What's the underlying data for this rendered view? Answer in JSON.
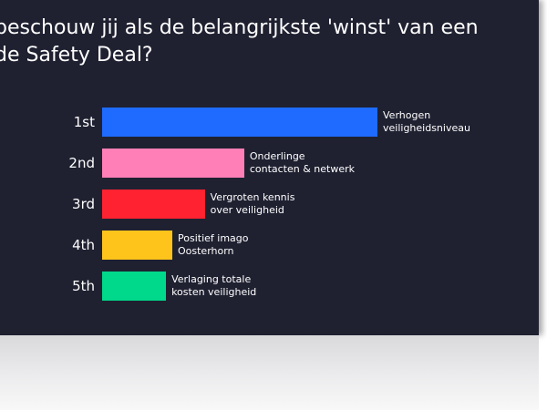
{
  "slide": {
    "title_lines": [
      "beschouw jij als de belangrijkste 'winst' van een",
      "de Safety Deal?"
    ]
  },
  "chart_data": {
    "type": "bar",
    "orientation": "horizontal",
    "title": "beschouw jij als de belangrijkste 'winst' van een de Safety Deal?",
    "categories": [
      "1st",
      "2nd",
      "3rd",
      "4th",
      "5th"
    ],
    "labels": [
      [
        "Verhogen",
        "veiligheidsniveau"
      ],
      [
        "Onderlinge",
        "contacten & netwerk"
      ],
      [
        "Vergroten kennis",
        "over veiligheid"
      ],
      [
        "Positief imago",
        "Oosterhorn"
      ],
      [
        "Verlaging totale",
        "kosten veiligheid"
      ]
    ],
    "values": [
      100,
      51.6,
      37.3,
      25.5,
      23.2
    ],
    "colors": [
      "#1f6bff",
      "#ff7fb6",
      "#ff2230",
      "#ffc41c",
      "#00d98b"
    ],
    "xlim": [
      0,
      100
    ],
    "grid": false,
    "legend": "none"
  }
}
